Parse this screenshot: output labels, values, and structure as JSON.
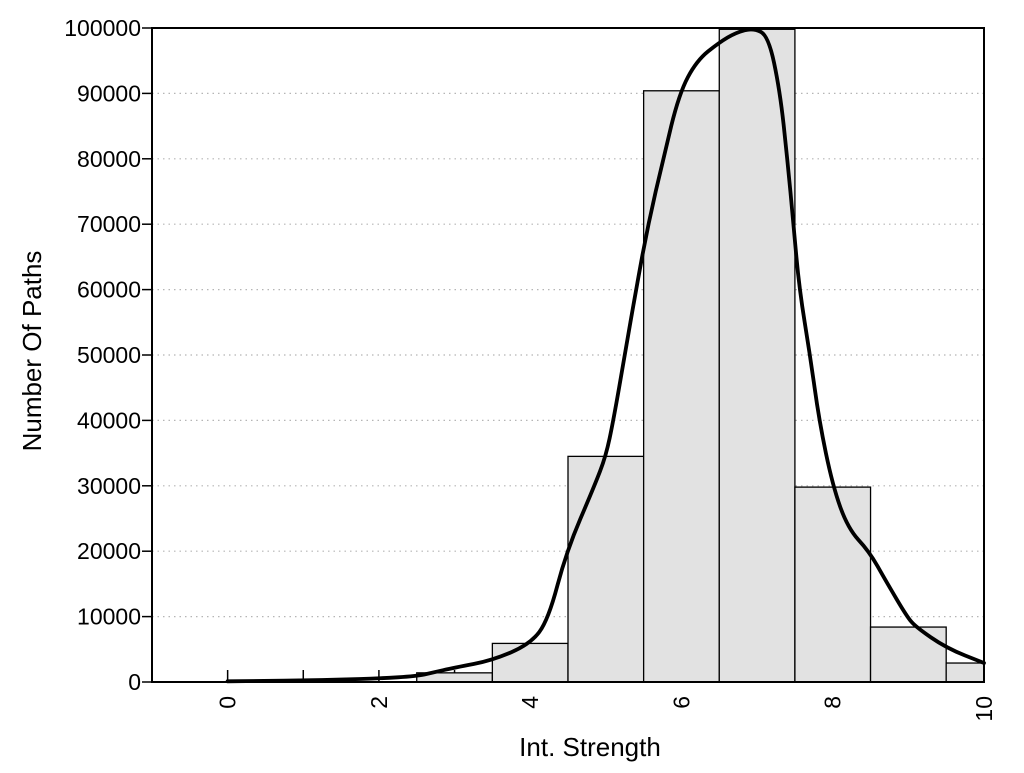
{
  "chart_data": {
    "type": "bar",
    "subtype": "histogram-with-density-curve",
    "title": "",
    "xlabel": "Int. Strength",
    "ylabel": "Number Of Paths",
    "xlim": [
      -1,
      10
    ],
    "ylim": [
      0,
      100000
    ],
    "x_tick_positions": [
      0,
      1,
      2,
      3,
      4,
      5,
      6,
      7,
      8,
      9,
      10
    ],
    "x_tick_labeled": [
      "0",
      "2",
      "4",
      "6",
      "8",
      "10"
    ],
    "x_tick_labeled_positions": [
      0,
      2,
      4,
      6,
      8,
      10
    ],
    "y_tick_positions": [
      0,
      10000,
      20000,
      30000,
      40000,
      50000,
      60000,
      70000,
      80000,
      90000,
      100000
    ],
    "y_tick_labels": [
      "0",
      "10000",
      "20000",
      "30000",
      "40000",
      "50000",
      "60000",
      "70000",
      "80000",
      "90000",
      "100000"
    ],
    "grid": {
      "horizontal": "dotted",
      "vertical": "none",
      "color": "#b5b5b5"
    },
    "legend": "none",
    "colors": {
      "bar_fill": "#e2e2e2",
      "bar_stroke": "#000000",
      "curve": "#000000",
      "axis": "#000000",
      "background": "#ffffff"
    },
    "histogram": {
      "bin_width": 1,
      "categories": [
        3,
        4,
        5,
        6,
        7,
        8,
        9,
        10
      ],
      "values": [
        1400,
        5900,
        34500,
        90400,
        99800,
        29800,
        8400,
        2900
      ],
      "bin_edges": [
        2.5,
        3.5,
        4.5,
        5.5,
        6.5,
        7.5,
        8.5,
        9.5,
        10
      ],
      "last_bin_clipped_at": 10
    },
    "curve": {
      "name": "density-fit",
      "points": [
        [
          0,
          100
        ],
        [
          0.5,
          160
        ],
        [
          1,
          240
        ],
        [
          1.5,
          360
        ],
        [
          2,
          550
        ],
        [
          2.5,
          900
        ],
        [
          2.7,
          1400
        ],
        [
          3,
          2200
        ],
        [
          3.5,
          3300
        ],
        [
          4,
          5800
        ],
        [
          4.24,
          9500
        ],
        [
          4.48,
          20000
        ],
        [
          4.85,
          30000
        ],
        [
          5,
          34500
        ],
        [
          5.1,
          40000
        ],
        [
          5.25,
          50000
        ],
        [
          5.4,
          60000
        ],
        [
          5.56,
          70000
        ],
        [
          5.76,
          80000
        ],
        [
          5.97,
          90000
        ],
        [
          6.2,
          95000
        ],
        [
          6.5,
          97800
        ],
        [
          6.72,
          99300
        ],
        [
          6.95,
          100000
        ],
        [
          7.15,
          98800
        ],
        [
          7.3,
          90500
        ],
        [
          7.4,
          80000
        ],
        [
          7.48,
          70000
        ],
        [
          7.56,
          60000
        ],
        [
          7.7,
          50000
        ],
        [
          7.82,
          40000
        ],
        [
          8.0,
          30000
        ],
        [
          8.2,
          23500
        ],
        [
          8.48,
          20000
        ],
        [
          8.7,
          15500
        ],
        [
          8.98,
          10000
        ],
        [
          9.1,
          8400
        ],
        [
          9.5,
          5200
        ],
        [
          10,
          2900
        ]
      ]
    }
  }
}
